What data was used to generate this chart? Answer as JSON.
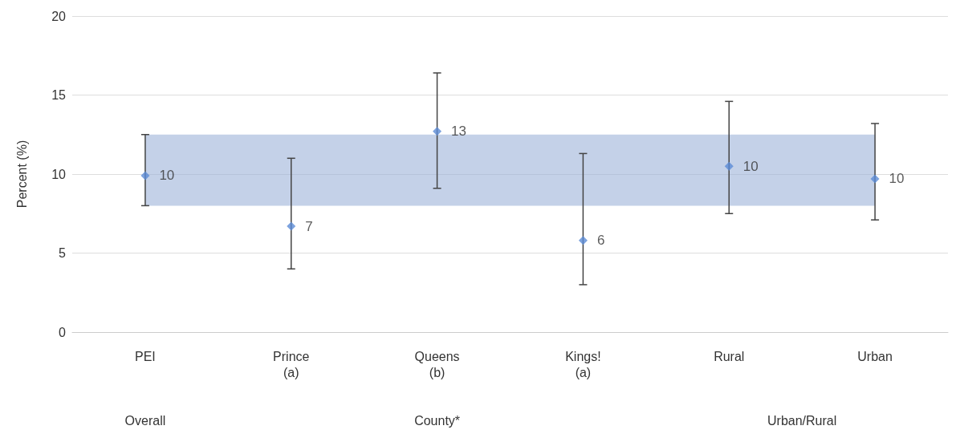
{
  "chart_data": {
    "type": "scatter",
    "ylabel": "Percent (%)",
    "categories": [
      "PEI",
      "Prince\n(a)",
      "Queens\n(b)",
      "Kings!\n(a)",
      "Rural",
      "Urban"
    ],
    "values": [
      9.9,
      6.7,
      12.7,
      5.8,
      10.5,
      9.7
    ],
    "value_labels": [
      "10",
      "7",
      "13",
      "6",
      "10",
      "10"
    ],
    "errors": [
      [
        8.0,
        12.5
      ],
      [
        4.0,
        11.0
      ],
      [
        9.1,
        16.4
      ],
      [
        3.0,
        11.3
      ],
      [
        7.5,
        14.6
      ],
      [
        7.1,
        13.2
      ]
    ],
    "color": "#5b8bd6",
    "marker": "diamond",
    "ylim": [
      0,
      20
    ],
    "yticks": [
      0,
      5,
      10,
      15,
      20
    ],
    "grid": "y",
    "bands": [
      {
        "axis": "y",
        "from": 8.0,
        "to": 12.5,
        "color": "#9db3d9"
      }
    ],
    "annotations": [
      "Overall",
      "County*",
      "Urban/Rural"
    ]
  }
}
